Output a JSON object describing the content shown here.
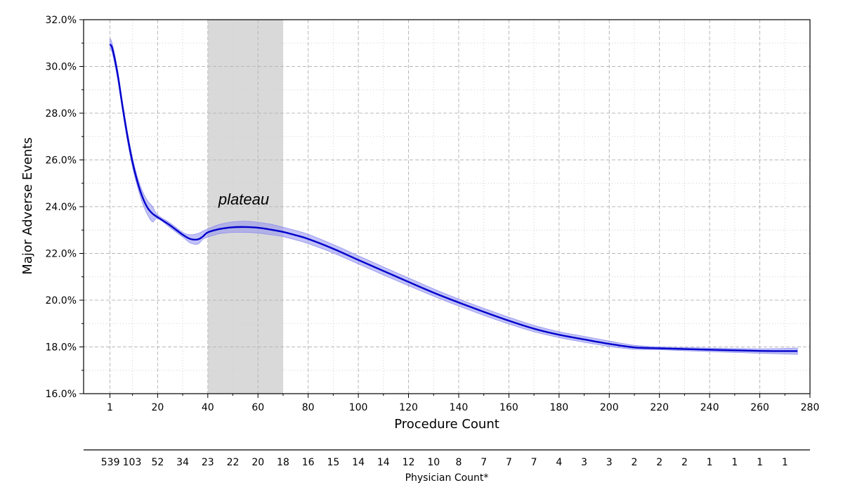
{
  "chart_data": {
    "type": "line",
    "xlabel": "Procedure Count",
    "ylabel": "Major Adverse Events",
    "secondary_xlabel": "Physician Count*",
    "annotation": "plateau",
    "xlim": [
      -9.5,
      280
    ],
    "ylim": [
      16.0,
      32.0
    ],
    "x_ticks": [
      1,
      20,
      40,
      60,
      80,
      100,
      120,
      140,
      160,
      180,
      200,
      220,
      240,
      260,
      280
    ],
    "y_ticks": [
      "16.0%",
      "18.0%",
      "20.0%",
      "22.0%",
      "24.0%",
      "26.0%",
      "28.0%",
      "30.0%",
      "32.0%"
    ],
    "y_tick_values": [
      16,
      18,
      20,
      22,
      24,
      26,
      28,
      30,
      32
    ],
    "grid": true,
    "shaded_region": {
      "x_start": 40,
      "x_end": 70
    },
    "physician_count_positions": [
      1,
      10,
      20,
      30,
      40,
      50,
      60,
      70,
      80,
      90,
      100,
      110,
      120,
      130,
      140,
      150,
      160,
      170,
      180,
      190,
      200,
      210,
      220,
      230,
      240,
      250,
      260,
      270
    ],
    "physician_counts": [
      "539",
      "103",
      "52",
      "34",
      "23",
      "22",
      "20",
      "18",
      "16",
      "15",
      "14",
      "14",
      "12",
      "10",
      "8",
      "7",
      "7",
      "7",
      "4",
      "3",
      "3",
      "2",
      "2",
      "2",
      "1",
      "1",
      "1",
      "1"
    ],
    "series": [
      {
        "x": [
          1,
          2,
          4,
          6,
          8,
          10,
          12,
          14,
          16,
          18,
          20,
          25,
          30,
          33,
          36,
          38,
          40,
          45,
          50,
          55,
          60,
          65,
          70,
          75,
          80,
          90,
          100,
          110,
          120,
          130,
          140,
          150,
          160,
          170,
          180,
          190,
          200,
          210,
          220,
          240,
          260,
          275
        ],
        "y": [
          30.95,
          30.75,
          29.7,
          28.3,
          27.0,
          25.9,
          25.05,
          24.4,
          23.95,
          23.7,
          23.55,
          23.2,
          22.8,
          22.62,
          22.6,
          22.72,
          22.9,
          23.05,
          23.12,
          23.13,
          23.1,
          23.02,
          22.92,
          22.78,
          22.62,
          22.2,
          21.72,
          21.25,
          20.78,
          20.32,
          19.9,
          19.5,
          19.12,
          18.78,
          18.52,
          18.32,
          18.13,
          17.98,
          17.94,
          17.88,
          17.83,
          17.82
        ],
        "lower": [
          30.8,
          30.55,
          29.5,
          28.1,
          26.8,
          25.7,
          24.85,
          24.15,
          23.65,
          23.35,
          23.5,
          23.1,
          22.7,
          22.45,
          22.4,
          22.6,
          22.7,
          22.85,
          22.9,
          22.9,
          22.87,
          22.8,
          22.72,
          22.58,
          22.42,
          22.02,
          21.55,
          21.08,
          20.62,
          20.17,
          19.75,
          19.35,
          18.98,
          18.65,
          18.4,
          18.2,
          18.02,
          17.9,
          17.88,
          17.8,
          17.73,
          17.68
        ],
        "upper": [
          31.2,
          30.95,
          29.9,
          28.5,
          27.2,
          26.1,
          25.25,
          24.65,
          24.25,
          24.0,
          23.65,
          23.3,
          22.9,
          22.8,
          22.85,
          22.95,
          23.05,
          23.25,
          23.35,
          23.38,
          23.33,
          23.25,
          23.12,
          22.98,
          22.82,
          22.38,
          21.9,
          21.42,
          20.95,
          20.48,
          20.05,
          19.65,
          19.27,
          18.92,
          18.65,
          18.45,
          18.25,
          18.07,
          18.0,
          17.95,
          17.92,
          17.95
        ]
      }
    ],
    "line_color": "#0000cc",
    "band_color": "#8f8ff0",
    "shade_color": "#d9d9d9"
  }
}
